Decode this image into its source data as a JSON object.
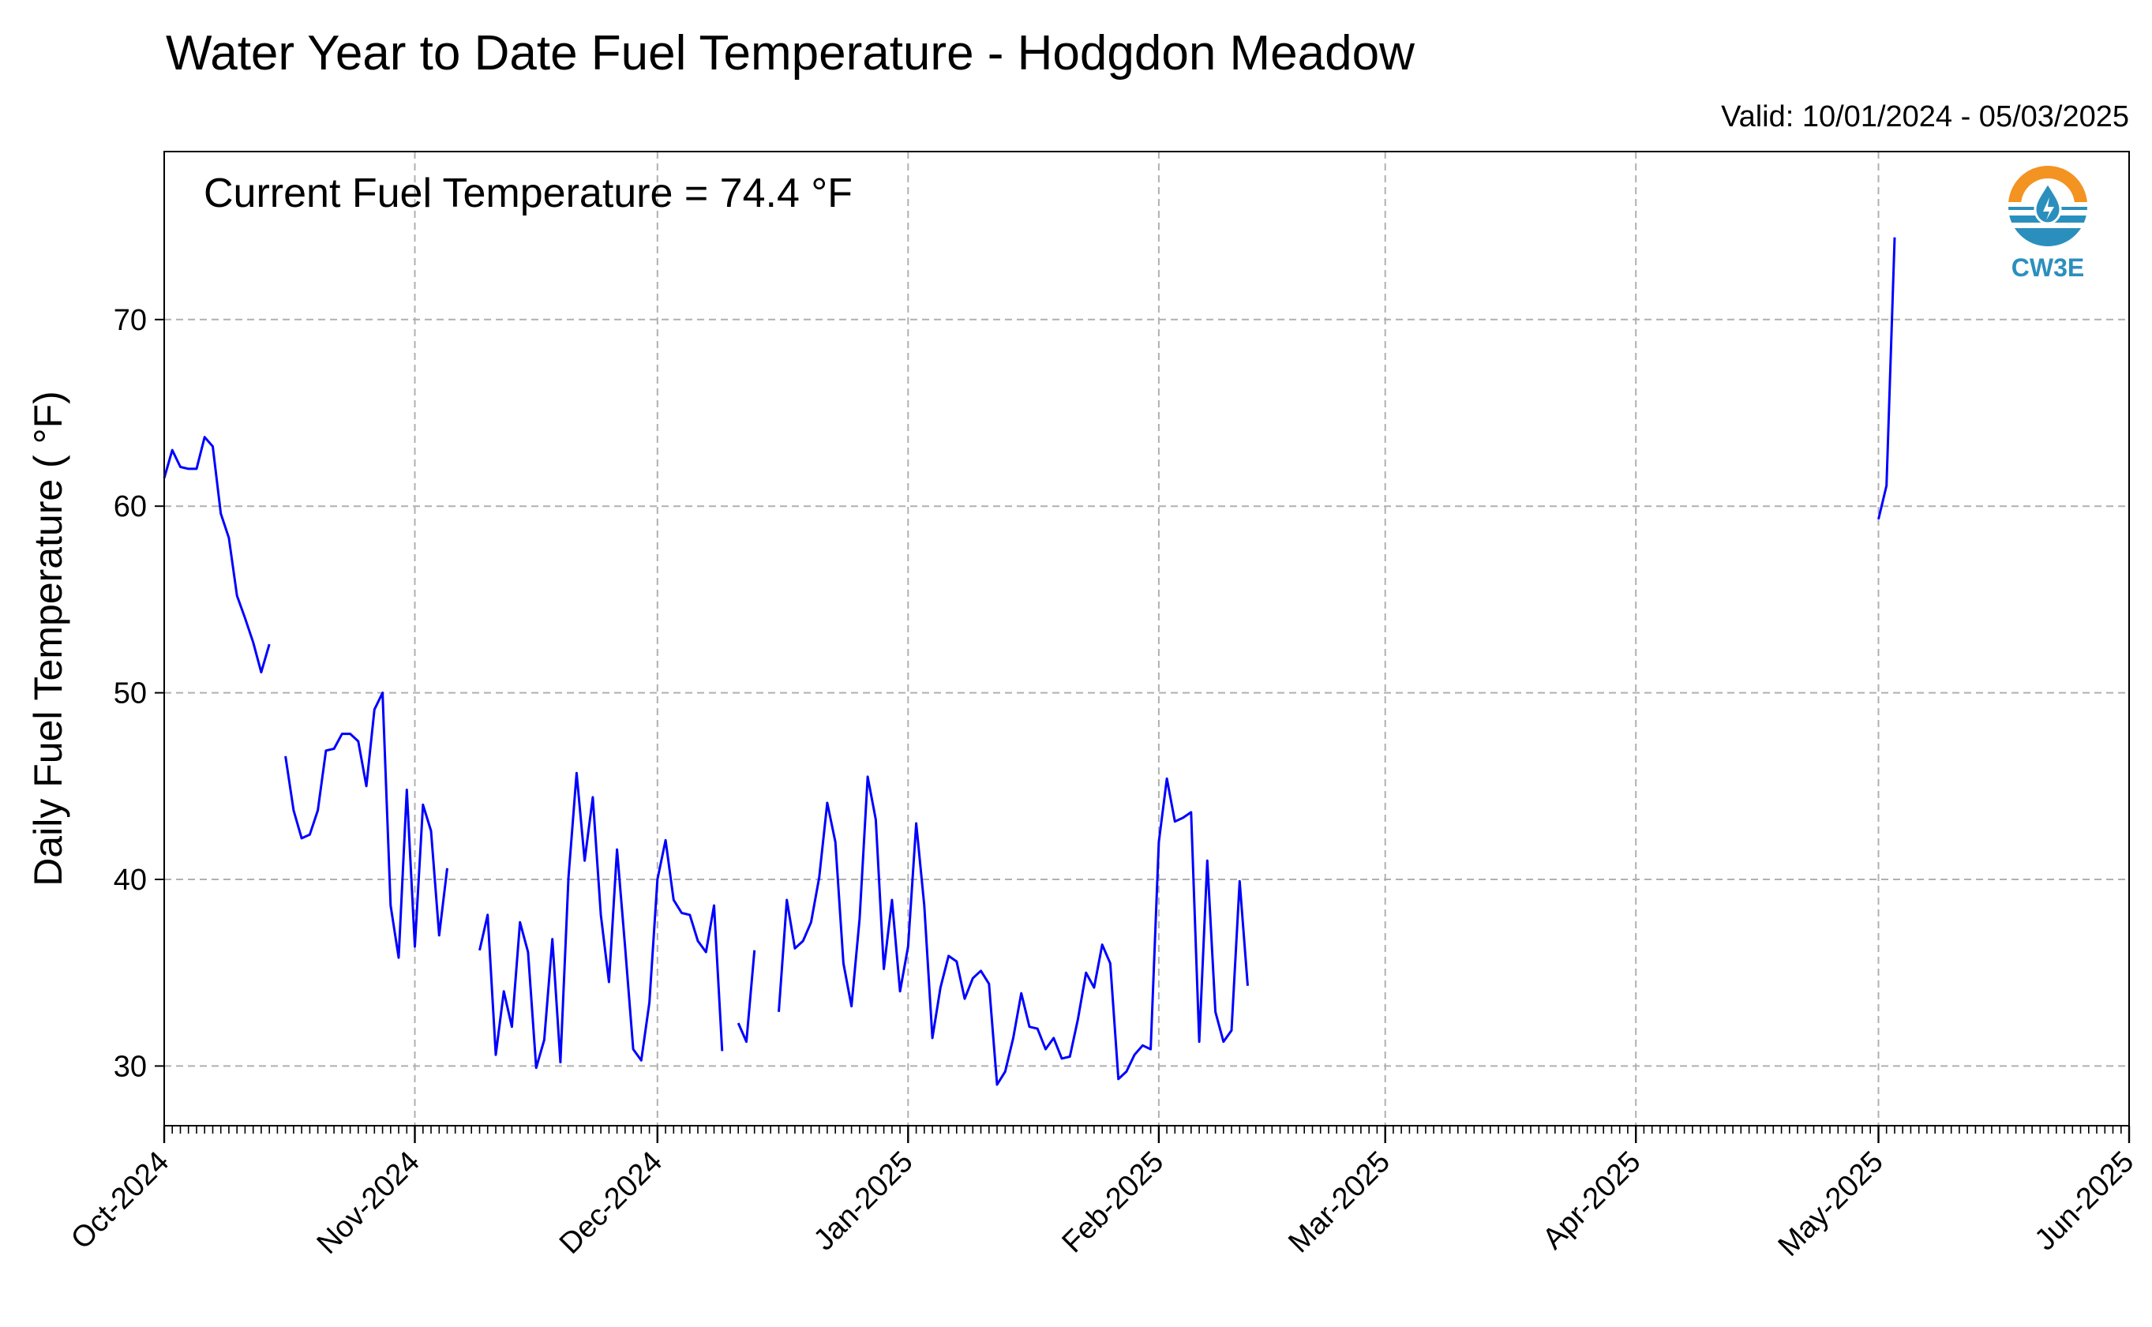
{
  "colors": {
    "line": "#0000ff",
    "grid": "#b0b0b0",
    "logo_orange": "#f39322",
    "logo_blue": "#2b8fbd"
  },
  "logo": {
    "icon": "cw3e-water-drop-logo",
    "text": "CW3E"
  },
  "chart_data": {
    "type": "line",
    "title": "Water Year to Date Fuel Temperature - Hodgdon Meadow",
    "subtitle": "Valid: 10/01/2024 - 05/03/2025",
    "annotation": "Current Fuel Temperature = 74.4  °F",
    "xlabel": "",
    "ylabel": "Daily Fuel Temperature ( °F)",
    "xlim": [
      "2024-10-01",
      "2025-06-01"
    ],
    "ylim": [
      26.8,
      79.0
    ],
    "yticks": [
      30,
      40,
      50,
      60,
      70
    ],
    "xticks": [
      {
        "date": "2024-10-01",
        "label": "Oct-2024"
      },
      {
        "date": "2024-11-01",
        "label": "Nov-2024"
      },
      {
        "date": "2024-12-01",
        "label": "Dec-2024"
      },
      {
        "date": "2025-01-01",
        "label": "Jan-2025"
      },
      {
        "date": "2025-02-01",
        "label": "Feb-2025"
      },
      {
        "date": "2025-03-01",
        "label": "Mar-2025"
      },
      {
        "date": "2025-04-01",
        "label": "Apr-2025"
      },
      {
        "date": "2025-05-01",
        "label": "May-2025"
      },
      {
        "date": "2025-06-01",
        "label": "Jun-2025"
      }
    ],
    "grid": true,
    "series": [
      {
        "segments": [
          [
            [
              "2024-10-01",
              61.5
            ],
            [
              "2024-10-02",
              63.0
            ],
            [
              "2024-10-03",
              62.1
            ],
            [
              "2024-10-04",
              62.0
            ],
            [
              "2024-10-05",
              62.0
            ],
            [
              "2024-10-06",
              63.7
            ],
            [
              "2024-10-07",
              63.2
            ],
            [
              "2024-10-08",
              59.6
            ],
            [
              "2024-10-09",
              58.3
            ],
            [
              "2024-10-10",
              55.2
            ],
            [
              "2024-10-11",
              54.0
            ],
            [
              "2024-10-12",
              52.7
            ],
            [
              "2024-10-13",
              51.1
            ],
            [
              "2024-10-14",
              52.6
            ]
          ],
          [
            [
              "2024-10-16",
              46.6
            ],
            [
              "2024-10-17",
              43.7
            ],
            [
              "2024-10-18",
              42.2
            ],
            [
              "2024-10-19",
              42.4
            ],
            [
              "2024-10-20",
              43.7
            ],
            [
              "2024-10-21",
              46.9
            ],
            [
              "2024-10-22",
              47.0
            ],
            [
              "2024-10-23",
              47.8
            ],
            [
              "2024-10-24",
              47.8
            ],
            [
              "2024-10-25",
              47.4
            ],
            [
              "2024-10-26",
              45.0
            ],
            [
              "2024-10-27",
              49.1
            ],
            [
              "2024-10-28",
              50.0
            ],
            [
              "2024-10-29",
              38.6
            ],
            [
              "2024-10-30",
              35.8
            ],
            [
              "2024-10-31",
              44.8
            ],
            [
              "2024-11-01",
              36.4
            ],
            [
              "2024-11-02",
              44.0
            ],
            [
              "2024-11-03",
              42.6
            ],
            [
              "2024-11-04",
              37.0
            ],
            [
              "2024-11-05",
              40.6
            ]
          ],
          [
            [
              "2024-11-09",
              36.2
            ],
            [
              "2024-11-10",
              38.1
            ],
            [
              "2024-11-11",
              30.6
            ],
            [
              "2024-11-12",
              34.0
            ],
            [
              "2024-11-13",
              32.1
            ],
            [
              "2024-11-14",
              37.7
            ],
            [
              "2024-11-15",
              36.1
            ],
            [
              "2024-11-16",
              29.9
            ],
            [
              "2024-11-17",
              31.4
            ],
            [
              "2024-11-18",
              36.8
            ],
            [
              "2024-11-19",
              30.2
            ],
            [
              "2024-11-20",
              40.1
            ],
            [
              "2024-11-21",
              45.7
            ],
            [
              "2024-11-22",
              41.0
            ],
            [
              "2024-11-23",
              44.4
            ],
            [
              "2024-11-24",
              38.1
            ],
            [
              "2024-11-25",
              34.5
            ],
            [
              "2024-11-26",
              41.6
            ],
            [
              "2024-11-27",
              36.4
            ],
            [
              "2024-11-28",
              30.9
            ],
            [
              "2024-11-29",
              30.3
            ],
            [
              "2024-11-30",
              33.4
            ],
            [
              "2024-12-01",
              40.0
            ],
            [
              "2024-12-02",
              42.1
            ],
            [
              "2024-12-03",
              38.9
            ],
            [
              "2024-12-04",
              38.2
            ],
            [
              "2024-12-05",
              38.1
            ],
            [
              "2024-12-06",
              36.7
            ],
            [
              "2024-12-07",
              36.1
            ],
            [
              "2024-12-08",
              38.6
            ],
            [
              "2024-12-09",
              30.8
            ]
          ],
          [
            [
              "2024-12-11",
              32.3
            ],
            [
              "2024-12-12",
              31.3
            ],
            [
              "2024-12-13",
              36.2
            ]
          ],
          [
            [
              "2024-12-16",
              32.9
            ],
            [
              "2024-12-17",
              38.9
            ],
            [
              "2024-12-18",
              36.3
            ],
            [
              "2024-12-19",
              36.7
            ],
            [
              "2024-12-20",
              37.7
            ],
            [
              "2024-12-21",
              40.1
            ],
            [
              "2024-12-22",
              44.1
            ],
            [
              "2024-12-23",
              42.0
            ],
            [
              "2024-12-24",
              35.5
            ],
            [
              "2024-12-25",
              33.2
            ],
            [
              "2024-12-26",
              37.9
            ],
            [
              "2024-12-27",
              45.5
            ],
            [
              "2024-12-28",
              43.2
            ],
            [
              "2024-12-29",
              35.2
            ],
            [
              "2024-12-30",
              38.9
            ],
            [
              "2024-12-31",
              34.0
            ],
            [
              "2025-01-01",
              36.4
            ],
            [
              "2025-01-02",
              43.0
            ],
            [
              "2025-01-03",
              38.6
            ],
            [
              "2025-01-04",
              31.5
            ],
            [
              "2025-01-05",
              34.2
            ],
            [
              "2025-01-06",
              35.9
            ],
            [
              "2025-01-07",
              35.6
            ],
            [
              "2025-01-08",
              33.6
            ],
            [
              "2025-01-09",
              34.7
            ],
            [
              "2025-01-10",
              35.1
            ],
            [
              "2025-01-11",
              34.4
            ],
            [
              "2025-01-12",
              29.0
            ],
            [
              "2025-01-13",
              29.7
            ],
            [
              "2025-01-14",
              31.5
            ],
            [
              "2025-01-15",
              33.9
            ],
            [
              "2025-01-16",
              32.1
            ],
            [
              "2025-01-17",
              32.0
            ],
            [
              "2025-01-18",
              30.9
            ],
            [
              "2025-01-19",
              31.5
            ],
            [
              "2025-01-20",
              30.4
            ],
            [
              "2025-01-21",
              30.5
            ],
            [
              "2025-01-22",
              32.5
            ],
            [
              "2025-01-23",
              35.0
            ],
            [
              "2025-01-24",
              34.2
            ],
            [
              "2025-01-25",
              36.5
            ],
            [
              "2025-01-26",
              35.5
            ],
            [
              "2025-01-27",
              29.3
            ],
            [
              "2025-01-28",
              29.7
            ],
            [
              "2025-01-29",
              30.6
            ],
            [
              "2025-01-30",
              31.1
            ],
            [
              "2025-01-31",
              30.9
            ],
            [
              "2025-02-01",
              42.0
            ],
            [
              "2025-02-02",
              45.4
            ],
            [
              "2025-02-03",
              43.1
            ],
            [
              "2025-02-04",
              43.3
            ],
            [
              "2025-02-05",
              43.6
            ],
            [
              "2025-02-06",
              31.3
            ],
            [
              "2025-02-07",
              41.0
            ],
            [
              "2025-02-08",
              32.9
            ],
            [
              "2025-02-09",
              31.3
            ],
            [
              "2025-02-10",
              31.9
            ],
            [
              "2025-02-11",
              39.9
            ],
            [
              "2025-02-12",
              34.3
            ]
          ],
          [
            [
              "2025-05-01",
              59.3
            ],
            [
              "2025-05-02",
              61.1
            ],
            [
              "2025-05-03",
              74.4
            ]
          ]
        ]
      }
    ]
  }
}
